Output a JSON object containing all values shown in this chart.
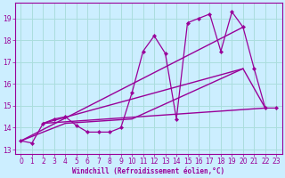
{
  "background_color": "#cceeff",
  "grid_color": "#aadddd",
  "line_color": "#990099",
  "xlabel": "Windchill (Refroidissement éolien,°C)",
  "xlim": [
    -0.5,
    23.5
  ],
  "ylim": [
    12.8,
    19.7
  ],
  "yticks": [
    13,
    14,
    15,
    16,
    17,
    18,
    19
  ],
  "xticks": [
    0,
    1,
    2,
    3,
    4,
    5,
    6,
    7,
    8,
    9,
    10,
    11,
    12,
    13,
    14,
    15,
    16,
    17,
    18,
    19,
    20,
    21,
    22,
    23
  ],
  "series_main": {
    "x": [
      0,
      1,
      2,
      3,
      4,
      5,
      6,
      7,
      8,
      9,
      10,
      11,
      12,
      13,
      14,
      15,
      16,
      17,
      18,
      19,
      20,
      21,
      22,
      23
    ],
    "y": [
      13.4,
      13.3,
      14.2,
      14.4,
      14.5,
      14.1,
      13.8,
      13.8,
      13.8,
      14.0,
      15.6,
      17.5,
      18.2,
      17.4,
      14.4,
      18.8,
      19.0,
      19.2,
      17.5,
      19.3,
      18.6,
      16.7,
      14.9,
      14.9
    ]
  },
  "series_line1": {
    "x": [
      2,
      22
    ],
    "y": [
      14.2,
      14.9
    ]
  },
  "series_line2": {
    "x": [
      2,
      20
    ],
    "y": [
      14.2,
      16.7
    ]
  },
  "series_line3": {
    "comment": "line from x=0,13.4 to x=20,18.6 (steeper)",
    "x": [
      0,
      20
    ],
    "y": [
      13.4,
      18.6
    ]
  },
  "series_line4": {
    "comment": "line from x=0,13.4 dips then rises, x=4,14.2 x=10,14.4 x=20,16.7 x=22,14.9",
    "x": [
      0,
      4,
      10,
      20,
      22
    ],
    "y": [
      13.4,
      14.2,
      14.4,
      16.7,
      14.9
    ]
  }
}
